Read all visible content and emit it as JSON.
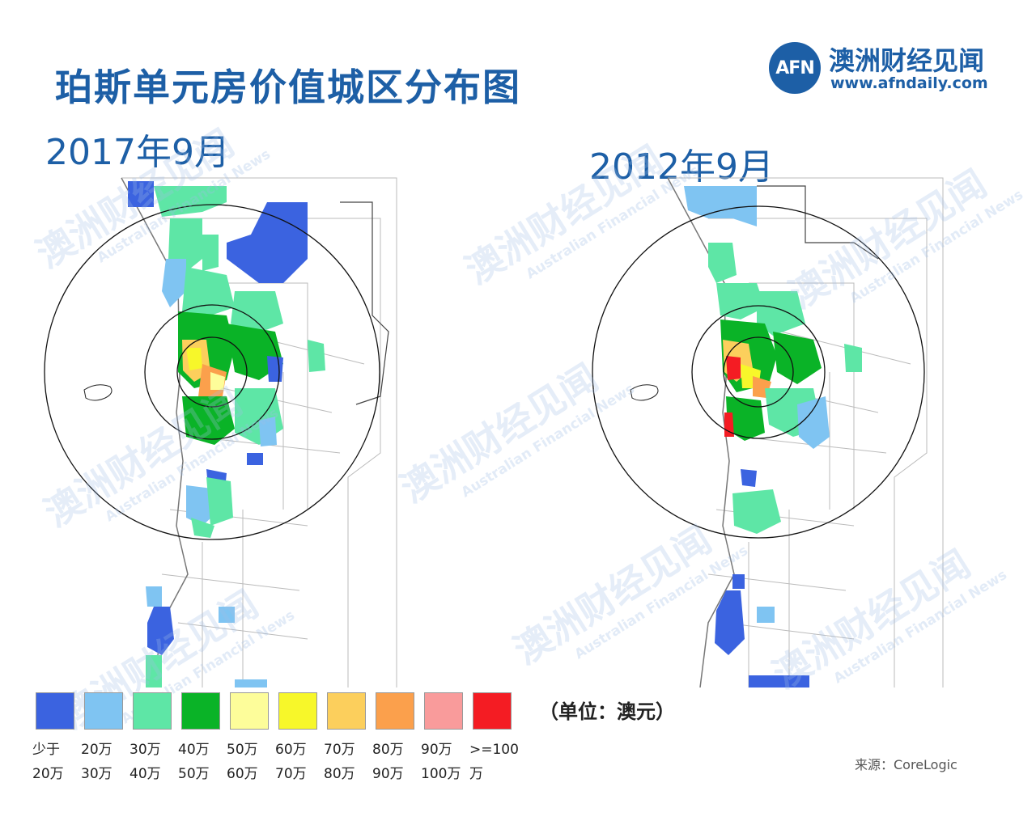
{
  "title": "珀斯单元房价值城区分布图",
  "logo": {
    "mark": "AFN",
    "name_cn": "澳洲财经见闻",
    "url": "www.afndaily.com"
  },
  "maps": [
    {
      "label": "2017年9月"
    },
    {
      "label": "2012年9月"
    }
  ],
  "legend": {
    "items": [
      {
        "line1": "少于",
        "line2": "20万",
        "color": "#3b63e0"
      },
      {
        "line1": "20万",
        "line2": "30万",
        "color": "#7fc4f2"
      },
      {
        "line1": "30万",
        "line2": "40万",
        "color": "#5ee6a6"
      },
      {
        "line1": "40万",
        "line2": "50万",
        "color": "#0ab327"
      },
      {
        "line1": "50万",
        "line2": "60万",
        "color": "#fdfd9a"
      },
      {
        "line1": "60万",
        "line2": "70万",
        "color": "#f7f72a"
      },
      {
        "line1": "70万",
        "line2": "80万",
        "color": "#fccf5c"
      },
      {
        "line1": "80万",
        "line2": "90万",
        "color": "#fba04c"
      },
      {
        "line1": "90万",
        "line2": "100万",
        "color": "#f99b9b"
      },
      {
        "line1": ">=100万",
        "line2": "",
        "color": "#f41c23"
      }
    ],
    "unit": "（单位：澳元）"
  },
  "source": "来源：CoreLogic",
  "watermark": {
    "cn": "澳洲财经见闻",
    "en": "Australian Financial News"
  }
}
